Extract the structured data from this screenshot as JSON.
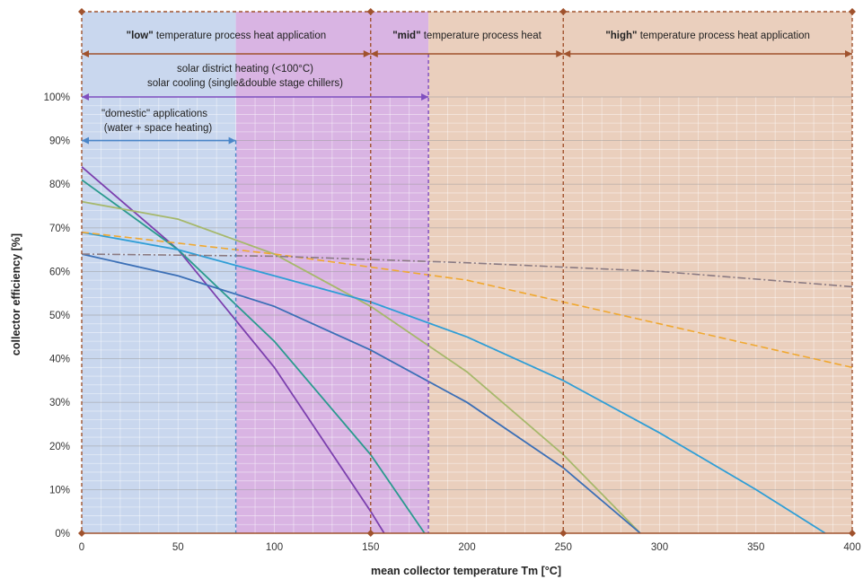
{
  "chart_data": {
    "type": "line",
    "title": "",
    "xlabel": "mean collector  temperature Tm  [°C]",
    "ylabel": "collector efficiency [%]",
    "xlim": [
      0,
      400
    ],
    "ylim": [
      0,
      100
    ],
    "x_ticks": [
      0,
      50,
      100,
      150,
      200,
      250,
      300,
      350,
      400
    ],
    "y_ticks": [
      0,
      10,
      20,
      30,
      40,
      50,
      60,
      70,
      80,
      90,
      100
    ],
    "y_tick_suffix": "%",
    "grid": true,
    "regions": [
      {
        "x0": 0,
        "x1": 80,
        "fill": "#c9d7ee"
      },
      {
        "x0": 80,
        "x1": 180,
        "fill": "#d9b4e3"
      },
      {
        "x0": 180,
        "x1": 400,
        "fill": "#eacfbd"
      }
    ],
    "band_rows": [
      {
        "segments": [
          {
            "x0": 0,
            "x1": 150,
            "bold": "\"low\"",
            "text": " temperature process heat application"
          },
          {
            "x0": 150,
            "x1": 250,
            "bold": "\"mid\"",
            "text": " temperature process heat"
          },
          {
            "x0": 250,
            "x1": 400,
            "bold": "\"high\"",
            "text": " temperature process heat application"
          }
        ]
      }
    ],
    "ranges": [
      {
        "label": "solar district heating (<100°C)",
        "label2": "solar cooling (single&double stage chillers)",
        "x0": 0,
        "x1": 180,
        "y": 100,
        "color": "#7f4fbf"
      },
      {
        "label": "\"domestic\" applications",
        "label2": "(water + space heating)",
        "x0": 0,
        "x1": 80,
        "y": 90,
        "color": "#4a86c8"
      }
    ],
    "boundaries": [
      {
        "x": 80,
        "color": "#4a86c8"
      },
      {
        "x": 150,
        "color": "#a0522d"
      },
      {
        "x": 180,
        "color": "#7f4fbf"
      },
      {
        "x": 250,
        "color": "#a0522d"
      },
      {
        "x": 400,
        "color": "#a0522d"
      }
    ],
    "series": [
      {
        "x": [
          0,
          50,
          100,
          150,
          157
        ],
        "values": [
          84,
          65,
          38,
          5,
          0
        ],
        "color": "#7b3fae",
        "style": "solid"
      },
      {
        "x": [
          0,
          50,
          100,
          150,
          178
        ],
        "values": [
          81,
          65,
          44,
          18,
          0
        ],
        "color": "#2a9a8e",
        "style": "solid"
      },
      {
        "x": [
          0,
          50,
          100,
          150,
          200,
          250,
          290
        ],
        "values": [
          76,
          72,
          64,
          52,
          37,
          18,
          0
        ],
        "color": "#a6b86b",
        "style": "solid"
      },
      {
        "x": [
          0,
          50,
          100,
          150,
          200,
          250,
          290
        ],
        "values": [
          64,
          59,
          52,
          42,
          30,
          15,
          0
        ],
        "color": "#3b6fb6",
        "style": "solid"
      },
      {
        "x": [
          0,
          50,
          100,
          150,
          200,
          250,
          300,
          350,
          386
        ],
        "values": [
          69,
          65,
          59,
          53,
          45,
          35,
          23,
          10,
          0
        ],
        "color": "#2f9ed6",
        "style": "solid"
      },
      {
        "x": [
          0,
          100,
          200,
          300,
          400
        ],
        "values": [
          69,
          64,
          58,
          48,
          38
        ],
        "color": "#f0a830",
        "style": "dashed"
      },
      {
        "x": [
          0,
          100,
          200,
          300,
          400
        ],
        "values": [
          64,
          63.5,
          62,
          60,
          56.5
        ],
        "color": "#8a7a82",
        "style": "dashdot"
      }
    ]
  }
}
